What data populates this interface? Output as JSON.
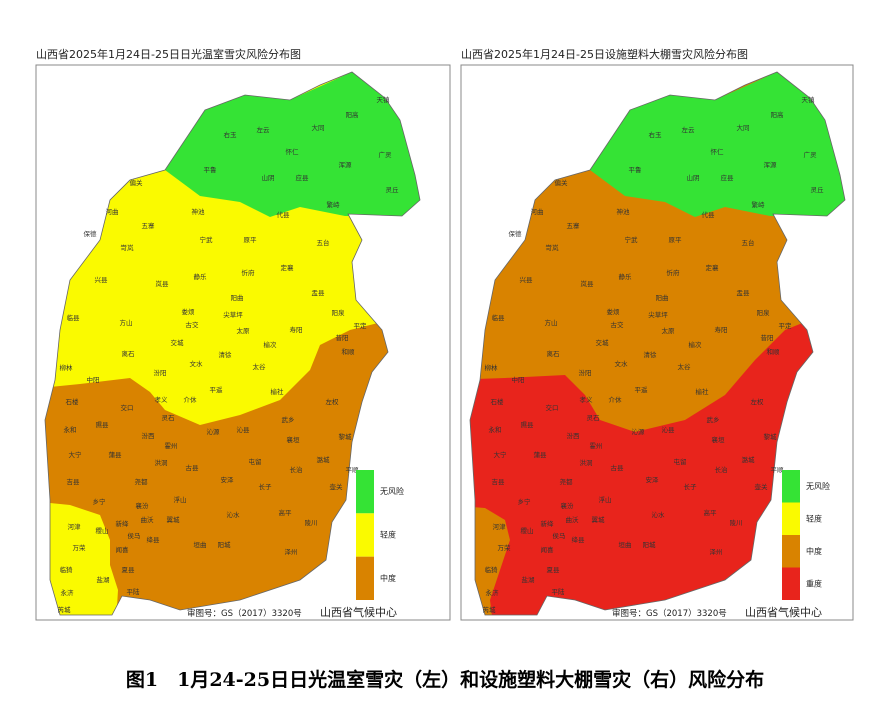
{
  "left_map": {
    "title": "山西省2025年1月24日-25日日光温室雪灾风险分布图",
    "legend": [
      {
        "label": "无风险",
        "color": "#35e335"
      },
      {
        "label": "轻度",
        "color": "#fafa00"
      },
      {
        "label": "中度",
        "color": "#d98300"
      }
    ],
    "review_number": "审图号：GS（2017）3320号",
    "producer": "山西省气候中心"
  },
  "right_map": {
    "title": "山西省2025年1月24日-25日设施塑料大棚雪灾风险分布图",
    "legend": [
      {
        "label": "无风险",
        "color": "#35e335"
      },
      {
        "label": "轻度",
        "color": "#fafa00"
      },
      {
        "label": "中度",
        "color": "#d98300"
      },
      {
        "label": "重度",
        "color": "#e8241c"
      }
    ],
    "review_number": "审图号：GS（2017）3320号",
    "producer": "山西省气候中心"
  },
  "county_labels": [
    "天镇",
    "阳高",
    "大同",
    "左云",
    "右玉",
    "怀仁",
    "浑源",
    "广灵",
    "灵丘",
    "应县",
    "山阴",
    "平鲁",
    "偏关",
    "河曲",
    "神池",
    "宁武",
    "代县",
    "繁峙",
    "五寨",
    "五台",
    "保德",
    "岢岚",
    "原平",
    "静乐",
    "忻府",
    "定襄",
    "兴县",
    "岚县",
    "阳曲",
    "盂县",
    "临县",
    "方山",
    "娄烦",
    "尖草坪",
    "古交",
    "太原",
    "寿阳",
    "阳泉",
    "昔阳",
    "平定",
    "交城",
    "榆次",
    "离石",
    "柳林",
    "文水",
    "清徐",
    "太谷",
    "和顺",
    "中阳",
    "汾阳",
    "平遥",
    "介休",
    "左权",
    "榆社",
    "孝义",
    "石楼",
    "交口",
    "灵石",
    "沁源",
    "武乡",
    "黎城",
    "永和",
    "隰县",
    "汾西",
    "霍州",
    "沁县",
    "襄垣",
    "潞城",
    "大宁",
    "蒲县",
    "洪洞",
    "古县",
    "屯留",
    "壶关",
    "吉县",
    "安泽",
    "长治",
    "长子",
    "平顺",
    "尧都",
    "乡宁",
    "浮山",
    "高平",
    "陵川",
    "襄汾",
    "曲沃",
    "翼城",
    "沁水",
    "阳城",
    "泽州",
    "河津",
    "稷山",
    "新绛",
    "侯马",
    "绛县",
    "万荣",
    "闻喜",
    "垣曲",
    "临猗",
    "盐湖",
    "夏县",
    "平陆",
    "永济",
    "芮城"
  ],
  "caption": "图1　1月24-25日日光温室雪灾（左）和设施塑料大棚雪灾（右）风险分布"
}
